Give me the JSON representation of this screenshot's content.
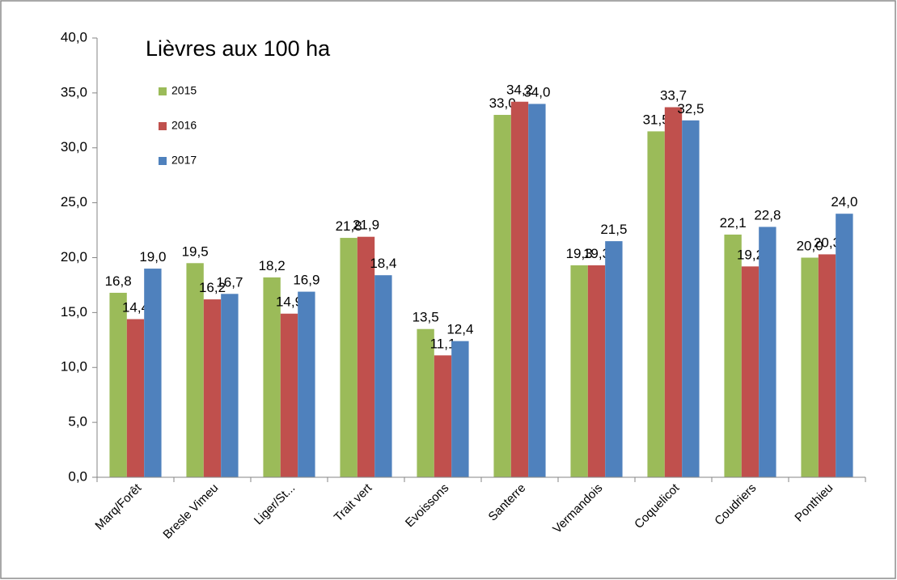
{
  "chart_data": {
    "type": "bar",
    "title": "Lièvres aux 100 ha",
    "categories": [
      "Marq/Forêt",
      "Bresle Vimeu",
      "Liger/St...",
      "Trait vert",
      "Evoissons",
      "Santerre",
      "Vermandois",
      "Coquelicot",
      "Coudriers",
      "Ponthieu"
    ],
    "series": [
      {
        "name": "2015",
        "color": "#9bbb59",
        "values": [
          16.8,
          19.5,
          18.2,
          21.8,
          13.5,
          33.0,
          19.3,
          31.5,
          22.1,
          20.0
        ],
        "value_labels": [
          "16,8",
          "19,5",
          "18,2",
          "21,8",
          "13,5",
          "33,0",
          "19,3",
          "31,5",
          "22,1",
          "20,0"
        ]
      },
      {
        "name": "2016",
        "color": "#c0504d",
        "values": [
          14.4,
          16.2,
          14.9,
          21.9,
          11.1,
          34.2,
          19.3,
          33.7,
          19.2,
          20.3
        ],
        "value_labels": [
          "14,4",
          "16,2",
          "14,9",
          "21,9",
          "11,1",
          "34,2",
          "19,3",
          "33,7",
          "19,2",
          "20,3"
        ]
      },
      {
        "name": "2017",
        "color": "#4f81bd",
        "values": [
          19.0,
          16.7,
          16.9,
          18.4,
          12.4,
          34.0,
          21.5,
          32.5,
          22.8,
          24.0
        ],
        "value_labels": [
          "19,0",
          "16,7",
          "16,9",
          "18,4",
          "12,4",
          "34,0",
          "21,5",
          "32,5",
          "22,8",
          "24,0"
        ]
      }
    ],
    "ylim": [
      0,
      40
    ],
    "yticks": [
      {
        "value": 0,
        "label": "0,0"
      },
      {
        "value": 5,
        "label": "5,0"
      },
      {
        "value": 10,
        "label": "10,0"
      },
      {
        "value": 15,
        "label": "15,0"
      },
      {
        "value": 20,
        "label": "20,0"
      },
      {
        "value": 25,
        "label": "25,0"
      },
      {
        "value": 30,
        "label": "30,0"
      },
      {
        "value": 35,
        "label": "35,0"
      },
      {
        "value": 40,
        "label": "40,0"
      }
    ],
    "grid": false,
    "legend": "upper left"
  }
}
